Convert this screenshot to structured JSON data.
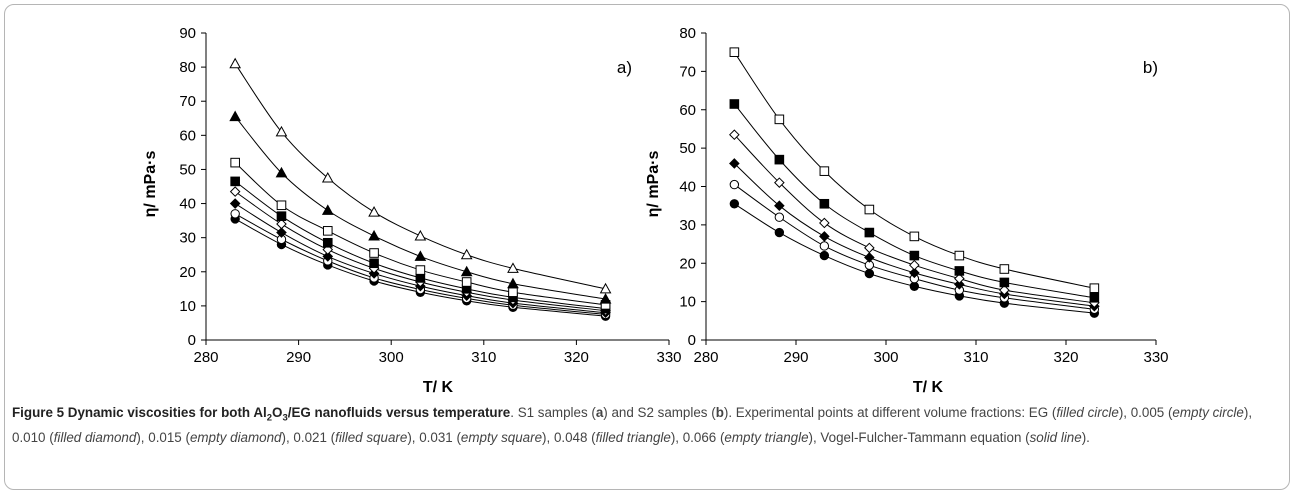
{
  "chart_data": [
    {
      "type": "scatter",
      "panel_label": "a)",
      "xlabel": "T/ K",
      "ylabel": "η/ mPa·s",
      "xlim": [
        280,
        330
      ],
      "ylim": [
        0,
        90
      ],
      "xticks": [
        280,
        290,
        300,
        310,
        320,
        330
      ],
      "yticks": [
        0,
        10,
        20,
        30,
        40,
        50,
        60,
        70,
        80,
        90
      ],
      "grid": false,
      "x": [
        283.15,
        288.15,
        293.15,
        298.15,
        303.15,
        308.15,
        313.15,
        323.15
      ],
      "series": [
        {
          "marker": "filled-circle",
          "values": [
            35.5,
            28.0,
            22.0,
            17.3,
            14.0,
            11.5,
            9.6,
            7.0
          ]
        },
        {
          "marker": "empty-circle",
          "values": [
            37.0,
            29.5,
            23.2,
            18.2,
            14.8,
            12.2,
            10.2,
            7.5
          ]
        },
        {
          "marker": "filled-diamond",
          "values": [
            40.0,
            31.5,
            24.5,
            19.5,
            15.8,
            13.0,
            10.8,
            8.0
          ]
        },
        {
          "marker": "empty-diamond",
          "values": [
            43.5,
            34.0,
            26.5,
            21.0,
            17.0,
            14.0,
            11.7,
            8.6
          ]
        },
        {
          "marker": "filled-square",
          "values": [
            46.5,
            36.3,
            28.5,
            22.5,
            18.2,
            15.0,
            12.5,
            9.2
          ]
        },
        {
          "marker": "empty-square",
          "values": [
            52.0,
            39.5,
            32.0,
            25.5,
            20.5,
            17.0,
            14.0,
            10.3
          ]
        },
        {
          "marker": "filled-triangle",
          "values": [
            65.5,
            49.0,
            38.0,
            30.5,
            24.5,
            20.0,
            16.5,
            12.0
          ]
        },
        {
          "marker": "empty-triangle",
          "values": [
            81.0,
            61.0,
            47.5,
            37.5,
            30.5,
            25.0,
            21.0,
            15.0
          ]
        }
      ]
    },
    {
      "type": "scatter",
      "panel_label": "b)",
      "xlabel": "T/ K",
      "ylabel": "η/ mPa·s",
      "xlim": [
        280,
        330
      ],
      "ylim": [
        0,
        80
      ],
      "xticks": [
        280,
        290,
        300,
        310,
        320,
        330
      ],
      "yticks": [
        0,
        10,
        20,
        30,
        40,
        50,
        60,
        70,
        80
      ],
      "grid": false,
      "x": [
        283.15,
        288.15,
        293.15,
        298.15,
        303.15,
        308.15,
        313.15,
        323.15
      ],
      "series": [
        {
          "marker": "filled-circle",
          "values": [
            35.5,
            28.0,
            22.0,
            17.3,
            14.0,
            11.5,
            9.6,
            7.0
          ]
        },
        {
          "marker": "empty-circle",
          "values": [
            40.5,
            32.0,
            24.5,
            19.5,
            16.0,
            13.0,
            11.0,
            8.0
          ]
        },
        {
          "marker": "filled-diamond",
          "values": [
            46.0,
            35.0,
            27.0,
            21.5,
            17.5,
            14.5,
            12.0,
            8.8
          ]
        },
        {
          "marker": "empty-diamond",
          "values": [
            53.5,
            41.0,
            30.5,
            24.0,
            19.5,
            16.0,
            13.0,
            9.7
          ]
        },
        {
          "marker": "filled-square",
          "values": [
            61.5,
            47.0,
            35.5,
            28.0,
            22.0,
            18.0,
            15.0,
            11.0
          ]
        },
        {
          "marker": "empty-square",
          "values": [
            75.0,
            57.5,
            44.0,
            34.0,
            27.0,
            22.0,
            18.5,
            13.5
          ]
        }
      ]
    }
  ],
  "caption": {
    "title_prefix": "Figure 5 Dynamic viscosities for both Al",
    "title_sub1": "2",
    "title_mid": "O",
    "title_sub2": "3",
    "title_suffix": "/EG nanofluids versus temperature",
    "t1": ". S1 samples (",
    "a": "a",
    "t2": ") and S2 samples (",
    "b": "b",
    "t3": "). Experimental points at different volume fractions: EG (",
    "i1": "filled circle",
    "t4": "), 0.005 (",
    "i2": "empty circle",
    "t5": "), 0.010 (",
    "i3": "filled diamond",
    "t6": "), 0.015 (",
    "i4": "empty diamond",
    "t7": "), 0.021 (",
    "i5": "filled square",
    "t8": "), 0.031 (",
    "i6": "empty square",
    "t9": "), 0.048 (",
    "i7": "filled triangle",
    "t10": "), 0.066 (",
    "i8": "empty triangle",
    "t11": "), Vogel-Fulcher-Tammann equation (",
    "i9": "solid line",
    "t12": ")."
  }
}
